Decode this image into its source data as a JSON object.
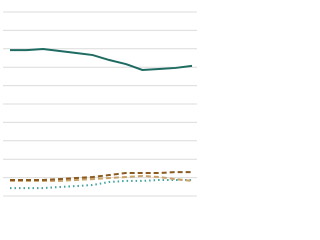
{
  "chart_data": {
    "type": "line",
    "categories": [
      null,
      null,
      null,
      null,
      null,
      null,
      null,
      null,
      null,
      null,
      null,
      null
    ],
    "ylim": [
      0,
      100
    ],
    "yticks": [
      0,
      10,
      20,
      30,
      40,
      50,
      60,
      70,
      80,
      90,
      100
    ],
    "grid": true,
    "series": [
      {
        "color": "#1e6b62",
        "dash": "solid",
        "values": [
          79.3,
          79.3,
          79.9,
          78.8,
          77.7,
          76.6,
          73.9,
          71.7,
          68.5,
          69.0,
          69.6,
          70.7
        ]
      },
      {
        "color": "#8b5a1e",
        "dash": "dashed",
        "values": [
          8.7,
          8.7,
          8.7,
          9.2,
          9.8,
          10.3,
          11.4,
          12.5,
          12.5,
          12.5,
          13.0,
          13.0
        ]
      },
      {
        "color": "#c9a36a",
        "dash": "dashed",
        "values": [
          8.2,
          8.2,
          8.2,
          8.2,
          8.7,
          9.2,
          9.8,
          10.3,
          10.9,
          10.3,
          9.2,
          8.2
        ]
      },
      {
        "color": "#3fa3a0",
        "dash": "dotted",
        "values": [
          4.3,
          4.3,
          4.3,
          4.9,
          5.4,
          6.0,
          7.6,
          8.2,
          8.2,
          8.7,
          8.7,
          8.7
        ]
      }
    ]
  }
}
